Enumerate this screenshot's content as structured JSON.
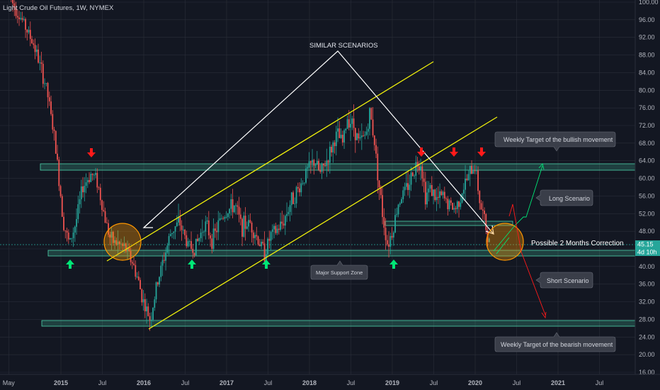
{
  "chart_data": {
    "type": "candlestick",
    "title": "Light Crude Oil Futures, 1W, NYMEX",
    "y_ticks": [
      "100.00",
      "96.00",
      "92.00",
      "88.00",
      "84.00",
      "80.00",
      "76.00",
      "72.00",
      "68.00",
      "64.00",
      "60.00",
      "56.00",
      "52.00",
      "48.00",
      "44.00",
      "40.00",
      "36.00",
      "32.00",
      "28.00",
      "24.00",
      "20.00",
      "16.00"
    ],
    "ylim": [
      15,
      100
    ],
    "x_ticks": [
      "May",
      "2015",
      "Jul",
      "2016",
      "Jul",
      "2017",
      "Jul",
      "2018",
      "Jul",
      "2019",
      "Jul",
      "2020",
      "Jul",
      "2021",
      "Jul"
    ],
    "x_tick_years": [
      2014.37,
      2015.0,
      2015.5,
      2016.0,
      2016.5,
      2017.0,
      2017.5,
      2018.0,
      2018.5,
      2019.0,
      2019.5,
      2020.0,
      2020.5,
      2021.0,
      2021.5
    ],
    "last_price": "45.15",
    "countdown": "4d 10h",
    "price_path": [
      [
        2014.4,
        101
      ],
      [
        2014.55,
        96
      ],
      [
        2014.7,
        90
      ],
      [
        2014.85,
        80
      ],
      [
        2014.95,
        68
      ],
      [
        2015.05,
        50
      ],
      [
        2015.12,
        45
      ],
      [
        2015.2,
        50
      ],
      [
        2015.28,
        58
      ],
      [
        2015.38,
        61
      ],
      [
        2015.45,
        60
      ],
      [
        2015.55,
        51
      ],
      [
        2015.62,
        46
      ],
      [
        2015.72,
        45
      ],
      [
        2015.8,
        44
      ],
      [
        2015.88,
        41
      ],
      [
        2015.95,
        37
      ],
      [
        2016.0,
        33
      ],
      [
        2016.05,
        30
      ],
      [
        2016.1,
        28
      ],
      [
        2016.18,
        36
      ],
      [
        2016.25,
        41
      ],
      [
        2016.35,
        48
      ],
      [
        2016.45,
        50
      ],
      [
        2016.55,
        45
      ],
      [
        2016.62,
        44
      ],
      [
        2016.68,
        46
      ],
      [
        2016.75,
        50
      ],
      [
        2016.85,
        46
      ],
      [
        2016.95,
        51
      ],
      [
        2017.05,
        53
      ],
      [
        2017.12,
        54
      ],
      [
        2017.2,
        49
      ],
      [
        2017.3,
        50
      ],
      [
        2017.4,
        46
      ],
      [
        2017.48,
        43
      ],
      [
        2017.55,
        47
      ],
      [
        2017.62,
        48
      ],
      [
        2017.7,
        50
      ],
      [
        2017.8,
        55
      ],
      [
        2017.9,
        58
      ],
      [
        2018.0,
        62
      ],
      [
        2018.08,
        64
      ],
      [
        2018.15,
        61
      ],
      [
        2018.25,
        65
      ],
      [
        2018.35,
        70
      ],
      [
        2018.42,
        68
      ],
      [
        2018.48,
        74
      ],
      [
        2018.55,
        72
      ],
      [
        2018.62,
        68
      ],
      [
        2018.7,
        70
      ],
      [
        2018.75,
        75
      ],
      [
        2018.8,
        69
      ],
      [
        2018.85,
        60
      ],
      [
        2018.9,
        52
      ],
      [
        2018.96,
        45
      ],
      [
        2019.02,
        48
      ],
      [
        2019.1,
        55
      ],
      [
        2019.2,
        58
      ],
      [
        2019.3,
        63
      ],
      [
        2019.36,
        64
      ],
      [
        2019.42,
        56
      ],
      [
        2019.48,
        58
      ],
      [
        2019.55,
        55
      ],
      [
        2019.62,
        56
      ],
      [
        2019.7,
        54
      ],
      [
        2019.78,
        53
      ],
      [
        2019.86,
        57
      ],
      [
        2019.95,
        61
      ],
      [
        2020.02,
        63
      ],
      [
        2020.08,
        54
      ],
      [
        2020.14,
        50
      ],
      [
        2020.18,
        45
      ]
    ]
  },
  "annotations": {
    "similar": "SIMILAR SCENARIOS",
    "correction": "Possible 2 Months Correction",
    "weekly_bull": "Weekly Target of the bullish movement",
    "long": "Long Scenario",
    "support": "Major Support Zone",
    "short": "Short Scenario",
    "weekly_bear": "Weekly Target of the bearish movement"
  },
  "colors": {
    "bg": "#131722",
    "grid": "#2a2e39",
    "up": "#26a69a",
    "down": "#ef5350",
    "zone": "#4dd4ac",
    "channel": "#f1f10b",
    "white": "#ffffff",
    "green_arrow": "#00e676",
    "red_arrow": "#ff1a1a",
    "circle": "#ff9800",
    "callout": "#363a45",
    "price_tag": "#26a69a"
  }
}
